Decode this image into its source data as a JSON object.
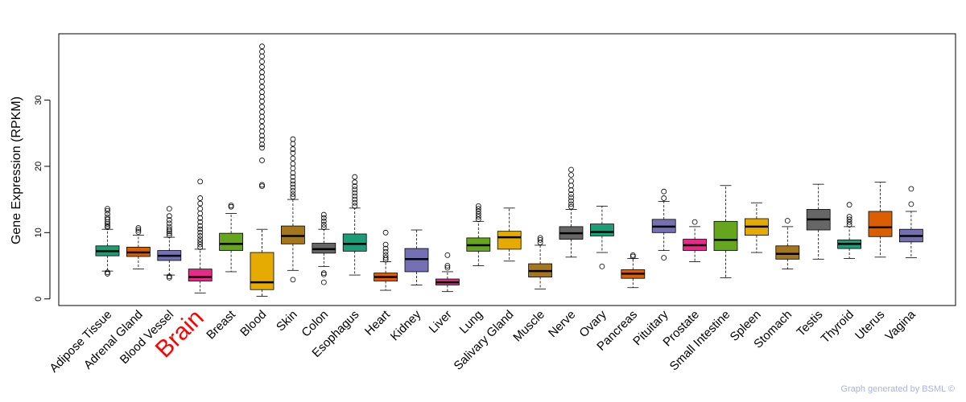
{
  "chart_data": {
    "type": "box",
    "title": "",
    "xlabel": "",
    "ylabel": "Gene Expression (RPKM)",
    "ylim": [
      -1,
      40
    ],
    "yticks": [
      0,
      10,
      20,
      30
    ],
    "highlight_category": "Brain",
    "highlight_color": "#ff0000",
    "categories": [
      "Adipose Tissue",
      "Adrenal Gland",
      "Blood Vessel",
      "Brain",
      "Breast",
      "Blood",
      "Skin",
      "Colon",
      "Esophagus",
      "Heart",
      "Kidney",
      "Liver",
      "Lung",
      "Salivary Gland",
      "Muscle",
      "Nerve",
      "Ovary",
      "Pancreas",
      "Pituitary",
      "Prostate",
      "Small Intestine",
      "Spleen",
      "Stomach",
      "Testis",
      "Thyroid",
      "Uterus",
      "Vagina"
    ],
    "colors": [
      "#1b9e77",
      "#d95f02",
      "#7570b3",
      "#e7298a",
      "#66a61e",
      "#e6ab02",
      "#a6761d",
      "#666666",
      "#1b9e77",
      "#d95f02",
      "#7570b3",
      "#e7298a",
      "#66a61e",
      "#e6ab02",
      "#a6761d",
      "#666666",
      "#1b9e77",
      "#d95f02",
      "#7570b3",
      "#e7298a",
      "#66a61e",
      "#e6ab02",
      "#a6761d",
      "#666666",
      "#1b9e77",
      "#d95f02",
      "#7570b3"
    ],
    "boxes": [
      {
        "low": 4.2,
        "q1": 6.5,
        "median": 7.2,
        "q3": 8.0,
        "high": 10.5,
        "outliers": [
          3.8,
          4.0,
          10.8,
          11.0,
          11.3,
          11.6,
          12.0,
          12.3,
          12.8,
          13.3,
          13.6
        ]
      },
      {
        "low": 4.5,
        "q1": 6.4,
        "median": 7.0,
        "q3": 7.8,
        "high": 9.6,
        "outliers": [
          10.1,
          10.4,
          10.7
        ]
      },
      {
        "low": 3.6,
        "q1": 5.8,
        "median": 6.5,
        "q3": 7.3,
        "high": 9.3,
        "outliers": [
          3.2,
          3.4,
          9.6,
          9.9,
          10.2,
          10.5,
          10.9,
          11.4,
          11.9,
          12.5,
          13.6
        ]
      },
      {
        "low": 0.9,
        "q1": 2.7,
        "median": 3.3,
        "q3": 4.5,
        "high": 7.5,
        "outliers": [
          7.8,
          8.2,
          8.6,
          9.0,
          9.5,
          10.0,
          10.5,
          11.0,
          11.6,
          12.2,
          12.9,
          13.6,
          14.4,
          15.2,
          17.7
        ]
      },
      {
        "low": 4.1,
        "q1": 7.3,
        "median": 8.3,
        "q3": 9.9,
        "high": 12.9,
        "outliers": [
          13.9,
          14.1
        ]
      },
      {
        "low": 0.4,
        "q1": 1.4,
        "median": 2.5,
        "q3": 7.0,
        "high": 10.5,
        "outliers": [
          17.0,
          17.2,
          20.9,
          22.8,
          23.3,
          24.0,
          24.6,
          25.3,
          26.0,
          26.8,
          27.5,
          28.2,
          29.0,
          29.8,
          30.5,
          31.2,
          32.0,
          32.8,
          33.5,
          34.2,
          35.0,
          35.8,
          36.6,
          37.3,
          38.1
        ]
      },
      {
        "low": 4.3,
        "q1": 8.3,
        "median": 9.5,
        "q3": 11.0,
        "high": 15.0,
        "outliers": [
          2.9,
          15.4,
          15.8,
          16.3,
          16.8,
          17.3,
          17.8,
          18.4,
          19.0,
          19.7,
          20.4,
          21.2,
          22.0,
          22.6,
          23.4,
          24.1
        ]
      },
      {
        "low": 4.9,
        "q1": 6.9,
        "median": 7.5,
        "q3": 8.4,
        "high": 10.5,
        "outliers": [
          2.5,
          3.7,
          3.9,
          10.8,
          11.2,
          11.7,
          12.2,
          12.7
        ]
      },
      {
        "low": 3.6,
        "q1": 7.2,
        "median": 8.3,
        "q3": 9.8,
        "high": 13.7,
        "outliers": [
          14.0,
          14.5,
          15.0,
          15.5,
          16.0,
          16.5,
          17.0,
          17.6,
          18.4
        ]
      },
      {
        "low": 1.3,
        "q1": 2.7,
        "median": 3.3,
        "q3": 3.9,
        "high": 5.6,
        "outliers": [
          5.9,
          6.2,
          6.6,
          7.1,
          7.6,
          8.2,
          10.0
        ]
      },
      {
        "low": 2.1,
        "q1": 4.1,
        "median": 6.0,
        "q3": 7.6,
        "high": 10.4,
        "outliers": []
      },
      {
        "low": 1.1,
        "q1": 2.1,
        "median": 2.5,
        "q3": 3.0,
        "high": 4.1,
        "outliers": [
          4.7,
          5.0,
          6.6
        ]
      },
      {
        "low": 5.0,
        "q1": 7.2,
        "median": 8.1,
        "q3": 9.2,
        "high": 11.7,
        "outliers": [
          12.0,
          12.4,
          12.8,
          13.2,
          13.6,
          14.0
        ]
      },
      {
        "low": 5.7,
        "q1": 7.5,
        "median": 9.3,
        "q3": 10.2,
        "high": 13.7,
        "outliers": []
      },
      {
        "low": 1.5,
        "q1": 3.3,
        "median": 4.2,
        "q3": 5.3,
        "high": 8.1,
        "outliers": [
          8.5,
          8.9,
          9.2
        ]
      },
      {
        "low": 6.3,
        "q1": 9.0,
        "median": 9.9,
        "q3": 10.9,
        "high": 13.5,
        "outliers": [
          13.9,
          14.3,
          14.8,
          15.3,
          15.8,
          16.4,
          17.1,
          17.8,
          18.7,
          19.5
        ]
      },
      {
        "low": 7.0,
        "q1": 9.5,
        "median": 10.1,
        "q3": 11.3,
        "high": 14.0,
        "outliers": [
          4.9
        ]
      },
      {
        "low": 1.7,
        "q1": 3.1,
        "median": 3.8,
        "q3": 4.4,
        "high": 6.1,
        "outliers": [
          6.4,
          6.6
        ]
      },
      {
        "low": 7.3,
        "q1": 10.0,
        "median": 10.9,
        "q3": 12.0,
        "high": 14.7,
        "outliers": [
          6.2,
          15.2,
          16.2
        ]
      },
      {
        "low": 5.6,
        "q1": 7.3,
        "median": 8.1,
        "q3": 9.0,
        "high": 10.9,
        "outliers": [
          11.6
        ]
      },
      {
        "low": 3.2,
        "q1": 7.3,
        "median": 8.9,
        "q3": 11.7,
        "high": 17.1,
        "outliers": []
      },
      {
        "low": 7.0,
        "q1": 9.6,
        "median": 10.9,
        "q3": 12.1,
        "high": 14.5,
        "outliers": []
      },
      {
        "low": 4.5,
        "q1": 6.0,
        "median": 6.8,
        "q3": 8.0,
        "high": 10.9,
        "outliers": [
          11.8
        ]
      },
      {
        "low": 6.0,
        "q1": 10.4,
        "median": 12.0,
        "q3": 13.5,
        "high": 17.3,
        "outliers": []
      },
      {
        "low": 6.1,
        "q1": 7.6,
        "median": 8.3,
        "q3": 8.9,
        "high": 10.9,
        "outliers": [
          11.2,
          11.6,
          12.0,
          12.4,
          14.2
        ]
      },
      {
        "low": 6.3,
        "q1": 9.4,
        "median": 10.8,
        "q3": 13.2,
        "high": 17.6,
        "outliers": []
      },
      {
        "low": 6.2,
        "q1": 8.6,
        "median": 9.5,
        "q3": 10.5,
        "high": 13.2,
        "outliers": [
          14.3,
          16.6
        ]
      }
    ]
  },
  "footer": {
    "credit": "Graph generated by BSML ©"
  }
}
